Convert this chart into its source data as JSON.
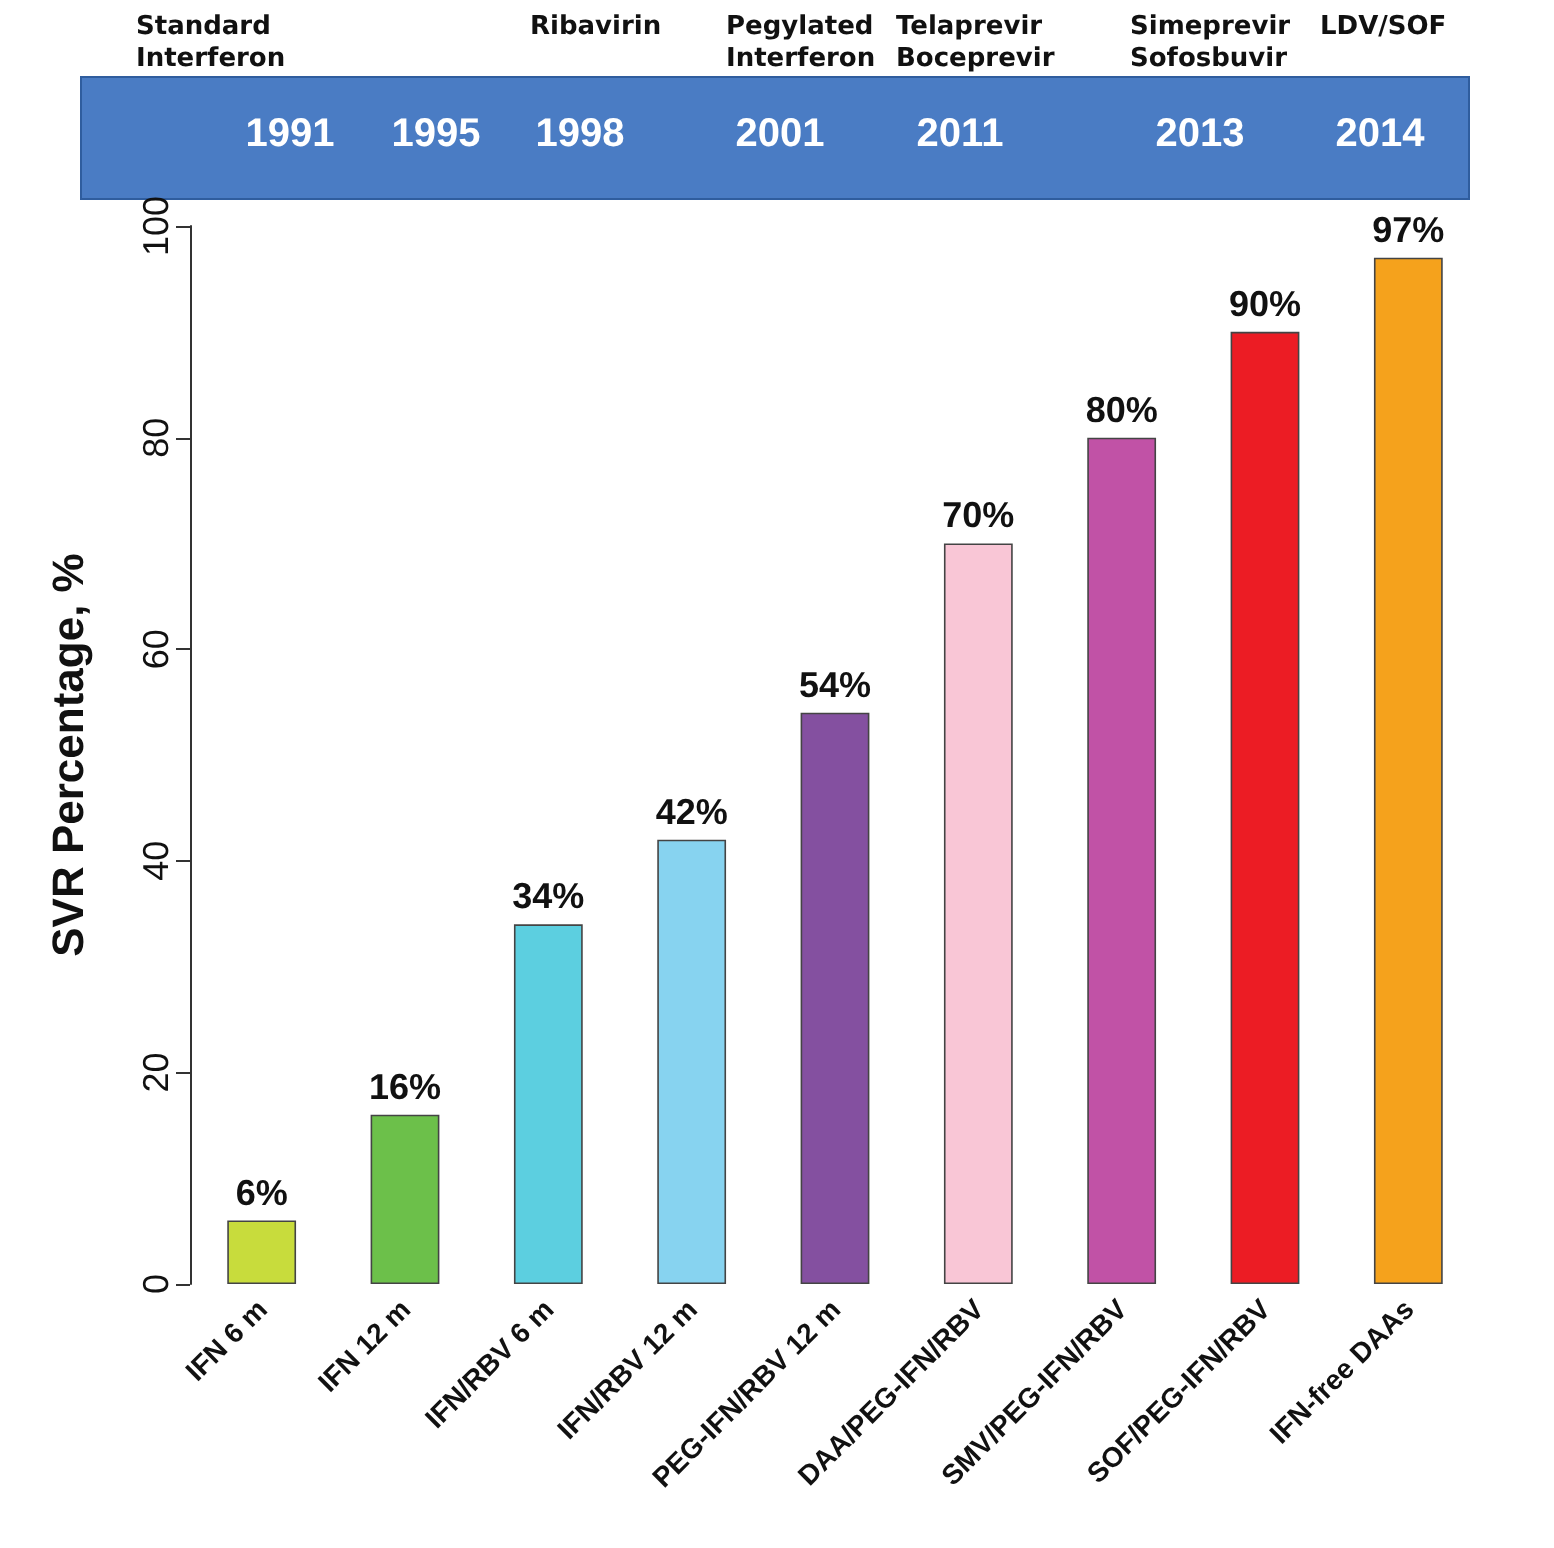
{
  "chart_data": {
    "type": "bar",
    "ylabel": "SVR Percentage, %",
    "categories": [
      "IFN 6 m",
      "IFN 12 m",
      "IFN/RBV 6 m",
      "IFN/RBV 12 m",
      "PEG-IFN/RBV 12 m",
      "DAA/PEG-IFN/RBV",
      "SMV/PEG-IFN/RBV",
      "SOF/PEG-IFN/RBV",
      "IFN-free DAAs"
    ],
    "values": [
      6,
      16,
      34,
      42,
      54,
      70,
      80,
      90,
      97
    ],
    "colors": [
      "#c8dc3c",
      "#6cc04a",
      "#5ccfe0",
      "#87d3f0",
      "#8450a0",
      "#f9c6d6",
      "#c152a6",
      "#ec1c24",
      "#f5a21c"
    ],
    "value_labels": [
      "6%",
      "16%",
      "34%",
      "42%",
      "54%",
      "70%",
      "80%",
      "90%",
      "97%"
    ],
    "ylim": [
      0,
      100
    ],
    "yticks": [
      0,
      20,
      40,
      60,
      80,
      100
    ],
    "grid": false,
    "annotations": [
      "Standard\nInterferon",
      "Ribavirin",
      "Pegylated\nInterferon",
      "Telaprevir\nBoceprevir",
      "Simeprevir\nSofosbuvir",
      "LDV/SOF",
      "1991",
      "1995",
      "1998",
      "2001",
      "2011",
      "2013",
      "2014"
    ]
  }
}
